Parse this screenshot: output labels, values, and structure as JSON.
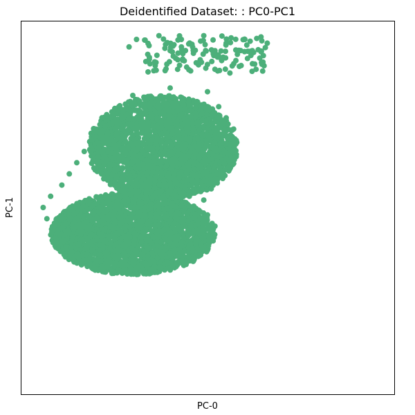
{
  "chart_data": {
    "type": "scatter",
    "title": "Deidentified Dataset: : PC0-PC1",
    "xlabel": "PC-0",
    "ylabel": "PC-1",
    "xlim": [
      0,
      1
    ],
    "ylim": [
      0,
      1
    ],
    "grid": false,
    "legend": "none",
    "color": "#4caf7a",
    "ticks": "none",
    "series": [
      {
        "values_approx": "dense point cloud",
        "points": [
          [
            0.29,
            0.93
          ],
          [
            0.31,
            0.95
          ],
          [
            0.34,
            0.91
          ],
          [
            0.37,
            0.96
          ],
          [
            0.4,
            0.92
          ],
          [
            0.43,
            0.95
          ],
          [
            0.46,
            0.93
          ],
          [
            0.49,
            0.96
          ],
          [
            0.52,
            0.92
          ],
          [
            0.55,
            0.94
          ],
          [
            0.58,
            0.91
          ],
          [
            0.6,
            0.95
          ],
          [
            0.62,
            0.92
          ],
          [
            0.64,
            0.9
          ],
          [
            0.66,
            0.94
          ],
          [
            0.36,
            0.88
          ],
          [
            0.42,
            0.87
          ],
          [
            0.48,
            0.89
          ],
          [
            0.52,
            0.87
          ],
          [
            0.56,
            0.86
          ],
          [
            0.59,
            0.88
          ],
          [
            0.63,
            0.87
          ],
          [
            0.25,
            0.75
          ],
          [
            0.3,
            0.8
          ],
          [
            0.35,
            0.78
          ],
          [
            0.4,
            0.82
          ],
          [
            0.45,
            0.79
          ],
          [
            0.5,
            0.81
          ],
          [
            0.53,
            0.77
          ],
          [
            0.55,
            0.74
          ],
          [
            0.57,
            0.71
          ],
          [
            0.56,
            0.67
          ],
          [
            0.55,
            0.63
          ],
          [
            0.53,
            0.59
          ],
          [
            0.51,
            0.55
          ],
          [
            0.49,
            0.52
          ],
          [
            0.5,
            0.48
          ],
          [
            0.52,
            0.45
          ],
          [
            0.49,
            0.42
          ],
          [
            0.46,
            0.39
          ],
          [
            0.42,
            0.37
          ],
          [
            0.38,
            0.38
          ],
          [
            0.34,
            0.37
          ],
          [
            0.3,
            0.37
          ],
          [
            0.26,
            0.38
          ],
          [
            0.22,
            0.39
          ],
          [
            0.18,
            0.4
          ],
          [
            0.14,
            0.42
          ],
          [
            0.1,
            0.44
          ],
          [
            0.07,
            0.47
          ],
          [
            0.06,
            0.5
          ],
          [
            0.08,
            0.53
          ],
          [
            0.11,
            0.56
          ],
          [
            0.13,
            0.59
          ],
          [
            0.15,
            0.62
          ],
          [
            0.17,
            0.65
          ],
          [
            0.19,
            0.68
          ],
          [
            0.2,
            0.71
          ],
          [
            0.22,
            0.74
          ]
        ]
      }
    ]
  }
}
